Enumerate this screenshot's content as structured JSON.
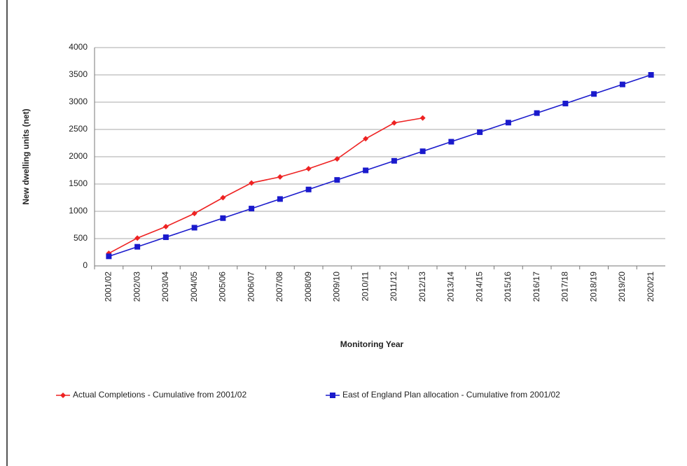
{
  "chart_data": {
    "type": "line",
    "y_label": "New dwelling units (net)",
    "x_label": "Monitoring Year",
    "categories": [
      "2001/02",
      "2002/03",
      "2003/04",
      "2004/05",
      "2005/06",
      "2006/07",
      "2007/08",
      "2008/09",
      "2009/10",
      "2010/11",
      "2011/12",
      "2012/13",
      "2013/14",
      "2014/15",
      "2015/16",
      "2016/17",
      "2017/18",
      "2018/19",
      "2019/20",
      "2020/21"
    ],
    "series": [
      {
        "name": "Actual Completions - Cumulative from 2001/02",
        "color": "#ee2222",
        "marker": "diamond",
        "values": [
          230,
          510,
          720,
          960,
          1250,
          1520,
          1630,
          1780,
          1960,
          2330,
          2620,
          2710,
          null,
          null,
          null,
          null,
          null,
          null,
          null,
          null
        ]
      },
      {
        "name": "East of England Plan allocation - Cumulative from 2001/02",
        "color": "#1a1acc",
        "marker": "square",
        "values": [
          175,
          350,
          525,
          700,
          875,
          1050,
          1225,
          1400,
          1575,
          1750,
          1925,
          2100,
          2275,
          2450,
          2625,
          2800,
          2975,
          3150,
          3325,
          3500
        ]
      }
    ],
    "ylim": [
      0,
      4000
    ],
    "yticks": [
      0,
      500,
      1000,
      1500,
      2000,
      2500,
      3000,
      3500,
      4000
    ],
    "grid": true
  }
}
